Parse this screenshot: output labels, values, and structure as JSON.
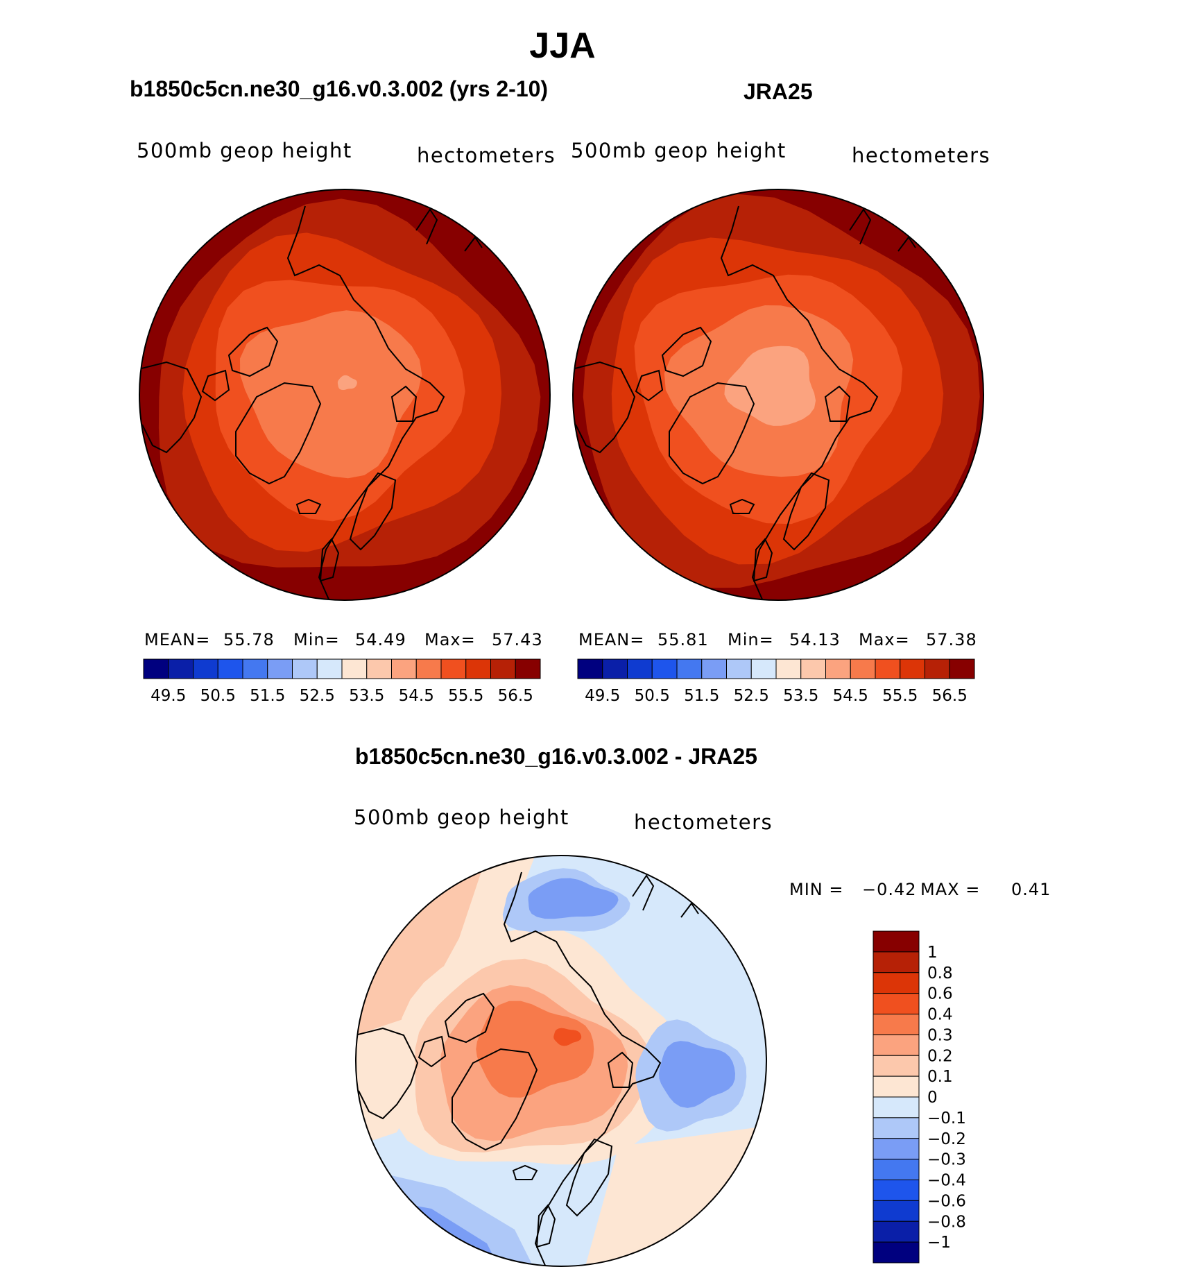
{
  "title": "JJA",
  "panels": [
    {
      "subtitle": "b1850c5cn.ne30_g16.v0.3.002 (yrs 2-10)",
      "left_label": "500mb geop height",
      "right_label": "hectometers",
      "stats": {
        "mean_label": "MEAN=",
        "mean": "55.78",
        "min_label": "Min=",
        "min": "54.49",
        "max_label": "Max=",
        "max": "57.43"
      }
    },
    {
      "subtitle": "JRA25",
      "left_label": "500mb geop height",
      "right_label": "hectometers",
      "stats": {
        "mean_label": "MEAN=",
        "mean": "55.81",
        "min_label": "Min=",
        "min": "54.13",
        "max_label": "Max=",
        "max": "57.38"
      }
    },
    {
      "subtitle": "b1850c5cn.ne30_g16.v0.3.002 - JRA25",
      "left_label": "500mb geop height",
      "right_label": "hectometers",
      "stats": {
        "min_label": "MIN =",
        "min": "−0.42",
        "max_label": "MAX =",
        "max": "0.41"
      }
    }
  ],
  "chart_data": [
    {
      "type": "heatmap",
      "projection": "north polar stereographic",
      "title": "b1850c5cn.ne30_g16.v0.3.002 (yrs 2-10)",
      "variable": "500mb geop height",
      "units": "hectometers",
      "mean": 55.78,
      "min": 54.49,
      "max": 57.43,
      "colorbar_ticks": [
        "49.5",
        "50.5",
        "51.5",
        "52.5",
        "53.5",
        "54.5",
        "55.5",
        "56.5"
      ],
      "colorbar_colors": [
        "#00007f",
        "#0a1fa8",
        "#0f3bd0",
        "#1e55ec",
        "#4478f0",
        "#7a9df5",
        "#aec8f8",
        "#d6e8fb",
        "#fde6d3",
        "#fcc8ac",
        "#fba37f",
        "#f77a4b",
        "#f0501f",
        "#dc3507",
        "#b62106",
        "#870000"
      ],
      "contour_levels": [
        54.5,
        55.0,
        55.5,
        56.0,
        56.5,
        57.0
      ],
      "contour_level_colors": [
        "#f77a4b",
        "#f0501f",
        "#dc3507",
        "#b62106",
        "#870000"
      ]
    },
    {
      "type": "heatmap",
      "projection": "north polar stereographic",
      "title": "JRA25",
      "variable": "500mb geop height",
      "units": "hectometers",
      "mean": 55.81,
      "min": 54.13,
      "max": 57.38,
      "colorbar_ticks": [
        "49.5",
        "50.5",
        "51.5",
        "52.5",
        "53.5",
        "54.5",
        "55.5",
        "56.5"
      ],
      "colorbar_colors": [
        "#00007f",
        "#0a1fa8",
        "#0f3bd0",
        "#1e55ec",
        "#4478f0",
        "#7a9df5",
        "#aec8f8",
        "#d6e8fb",
        "#fde6d3",
        "#fcc8ac",
        "#fba37f",
        "#f77a4b",
        "#f0501f",
        "#dc3507",
        "#b62106",
        "#870000"
      ]
    },
    {
      "type": "heatmap",
      "projection": "north polar stereographic",
      "title": "b1850c5cn.ne30_g16.v0.3.002 - JRA25",
      "variable": "500mb geop height",
      "units": "hectometers",
      "min": -0.42,
      "max": 0.41,
      "colorbar_ticks": [
        "1",
        "0.8",
        "0.6",
        "0.4",
        "0.3",
        "0.2",
        "0.1",
        "0",
        "−0.1",
        "−0.2",
        "−0.3",
        "−0.4",
        "−0.6",
        "−0.8",
        "−1"
      ],
      "colorbar_colors": [
        "#870000",
        "#b62106",
        "#dc3507",
        "#f0501f",
        "#f77a4b",
        "#fba37f",
        "#fcc8ac",
        "#fde6d3",
        "#d6e8fb",
        "#aec8f8",
        "#7a9df5",
        "#4478f0",
        "#1e55ec",
        "#0f3bd0",
        "#0a1fa8",
        "#00007f"
      ]
    }
  ]
}
